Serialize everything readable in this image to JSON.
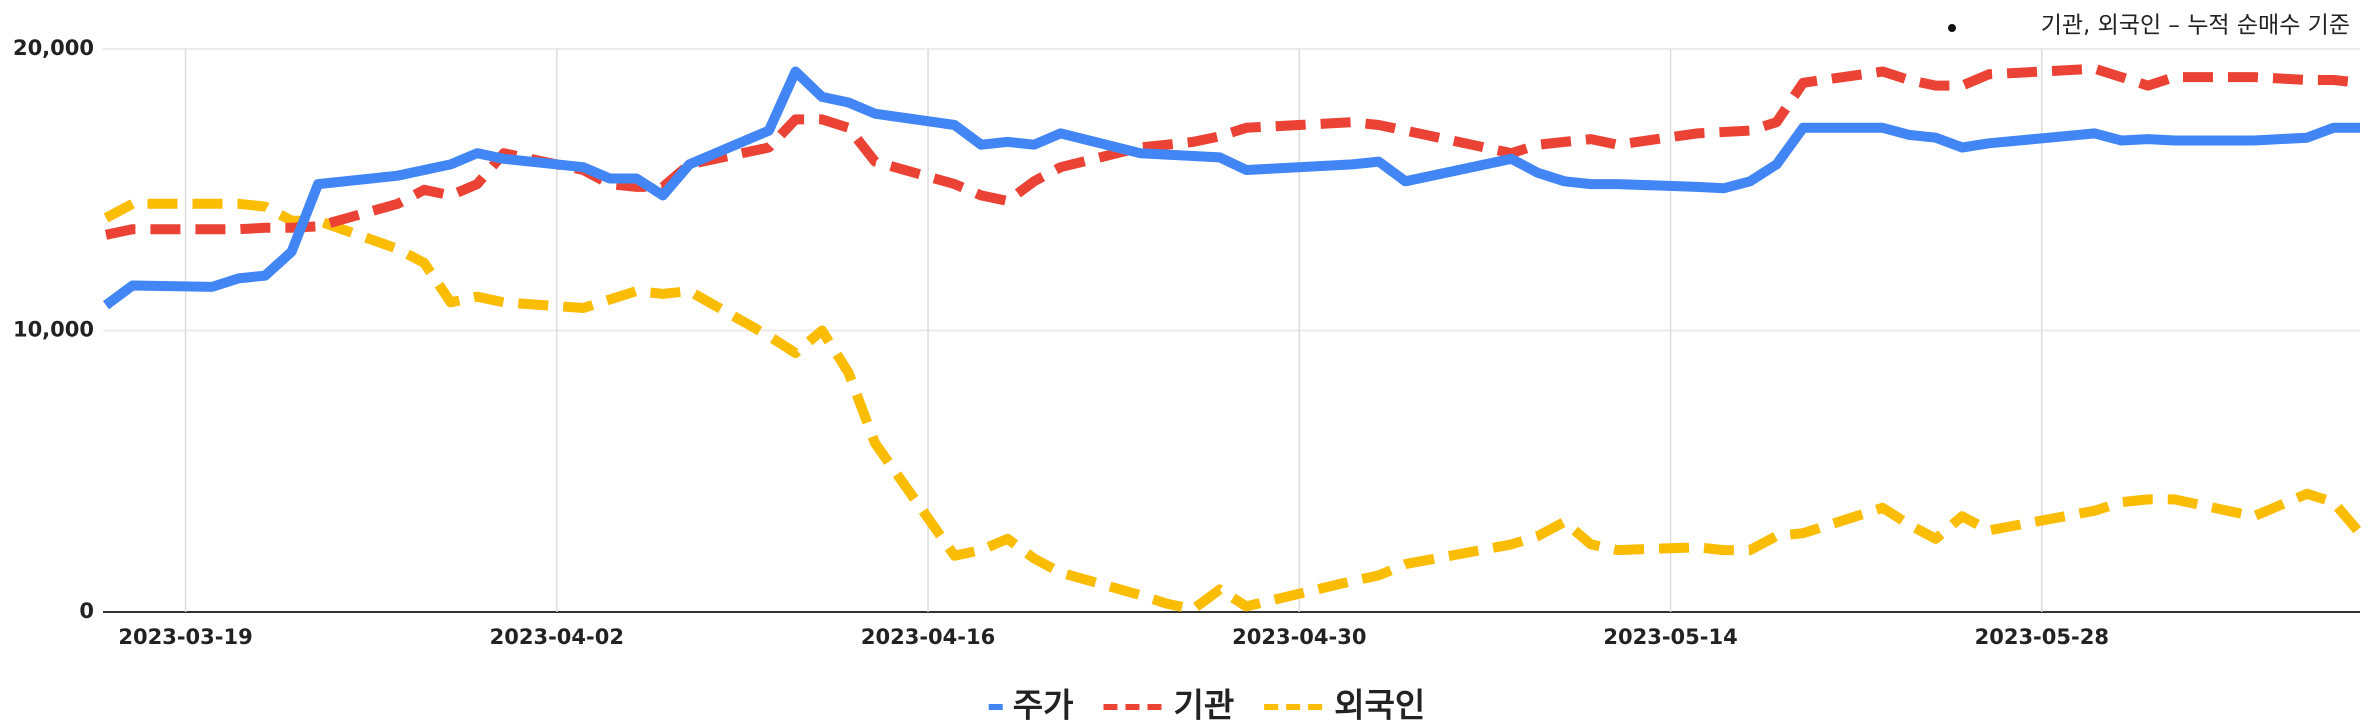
{
  "chart_data": {
    "type": "line",
    "annotation": "기관, 외국인 – 누적 순매수 기준",
    "x": [
      "2023-03-16",
      "2023-03-17",
      "2023-03-20",
      "2023-03-21",
      "2023-03-22",
      "2023-03-23",
      "2023-03-24",
      "2023-03-27",
      "2023-03-28",
      "2023-03-29",
      "2023-03-30",
      "2023-03-31",
      "2023-04-03",
      "2023-04-04",
      "2023-04-05",
      "2023-04-06",
      "2023-04-07",
      "2023-04-10",
      "2023-04-11",
      "2023-04-12",
      "2023-04-13",
      "2023-04-14",
      "2023-04-17",
      "2023-04-18",
      "2023-04-19",
      "2023-04-20",
      "2023-04-21",
      "2023-04-24",
      "2023-04-25",
      "2023-04-26",
      "2023-04-27",
      "2023-04-28",
      "2023-05-02",
      "2023-05-03",
      "2023-05-04",
      "2023-05-08",
      "2023-05-09",
      "2023-05-10",
      "2023-05-11",
      "2023-05-12",
      "2023-05-15",
      "2023-05-16",
      "2023-05-17",
      "2023-05-18",
      "2023-05-19",
      "2023-05-22",
      "2023-05-23",
      "2023-05-24",
      "2023-05-25",
      "2023-05-26",
      "2023-05-30",
      "2023-05-31",
      "2023-06-01",
      "2023-06-02",
      "2023-06-05",
      "2023-06-07",
      "2023-06-08",
      "2023-06-09"
    ],
    "series": [
      {
        "name": "주가",
        "color": "#4285f4",
        "dashed": false,
        "values": [
          10900,
          11600,
          11550,
          11850,
          11950,
          12800,
          15200,
          15500,
          15700,
          15900,
          16300,
          16100,
          15800,
          15400,
          15400,
          14800,
          15900,
          17100,
          19200,
          18300,
          18100,
          17700,
          17300,
          16600,
          16700,
          16600,
          17000,
          16300,
          16250,
          16200,
          16150,
          15700,
          15900,
          16000,
          15300,
          16100,
          15600,
          15300,
          15200,
          15200,
          15100,
          15050,
          15300,
          15900,
          17200,
          17200,
          16950,
          16850,
          16500,
          16650,
          17000,
          16750,
          16800,
          16750,
          16750,
          16850,
          17200,
          17200
        ]
      },
      {
        "name": "기관",
        "color": "#ea4335",
        "dashed": true,
        "values": [
          13400,
          13600,
          13600,
          13600,
          13650,
          13650,
          13700,
          14500,
          15000,
          14800,
          15200,
          16300,
          15700,
          15200,
          15100,
          15100,
          15900,
          16500,
          17500,
          17500,
          17200,
          16000,
          15200,
          14800,
          14600,
          15300,
          15800,
          16500,
          16600,
          16700,
          16900,
          17200,
          17400,
          17300,
          17100,
          16300,
          16600,
          16700,
          16800,
          16600,
          17000,
          17050,
          17100,
          17400,
          18800,
          19200,
          18900,
          18700,
          18700,
          19100,
          19300,
          19000,
          18700,
          19000,
          19000,
          18900,
          18900,
          18800
        ]
      },
      {
        "name": "외국인",
        "color": "#fbbc04",
        "dashed": true,
        "values": [
          14000,
          14500,
          14500,
          14500,
          14400,
          13900,
          13900,
          12900,
          12400,
          11000,
          11200,
          11000,
          10800,
          11100,
          11400,
          11300,
          11400,
          9800,
          9200,
          10000,
          8500,
          6000,
          2000,
          2200,
          2600,
          1900,
          1400,
          600,
          300,
          100,
          800,
          200,
          1100,
          1300,
          1700,
          2400,
          2700,
          3200,
          2400,
          2200,
          2300,
          2200,
          2200,
          2700,
          2800,
          3700,
          3100,
          2600,
          3400,
          2900,
          3600,
          3900,
          4000,
          4000,
          3400,
          4200,
          3900,
          2800
        ]
      }
    ],
    "xlim": [
      "2023-03-16",
      "2023-06-09"
    ],
    "xticks": [
      "2023-03-19",
      "2023-04-02",
      "2023-04-16",
      "2023-04-30",
      "2023-05-14",
      "2023-05-28"
    ],
    "ylim": [
      0,
      20000
    ],
    "yticks": [
      0,
      {
        "value": 10000,
        "label": "10,000"
      },
      {
        "value": 20000,
        "label": "20,000"
      }
    ],
    "grid": true,
    "legend": "bottom"
  }
}
